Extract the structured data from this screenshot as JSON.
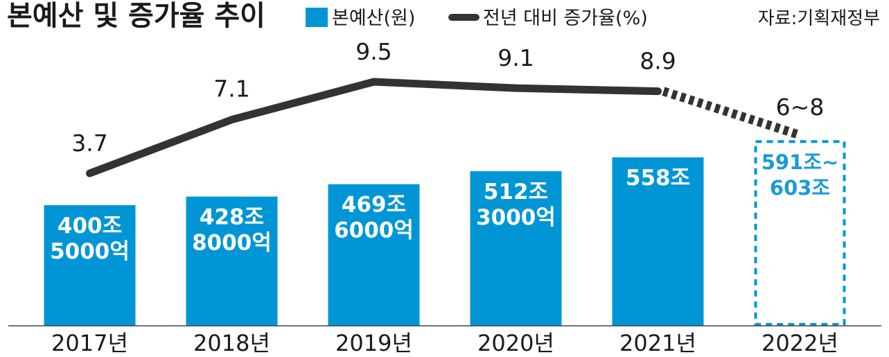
{
  "chart_data": {
    "type": "bar",
    "title": "본예산 및 증가율 추이",
    "source": "자료:기획재정부",
    "categories": [
      "2017년",
      "2018년",
      "2019년",
      "2020년",
      "2021년",
      "2022년"
    ],
    "series": [
      {
        "name": "본예산(원)",
        "kind": "bar",
        "color": "#0096d6",
        "values": [
          400.5,
          428.8,
          469.6,
          512.3,
          558,
          597
        ],
        "range_last": [
          591,
          603
        ],
        "labels": [
          [
            "400조",
            "5000억"
          ],
          [
            "428조",
            "8000억"
          ],
          [
            "469조",
            "6000억"
          ],
          [
            "512조",
            "3000억"
          ],
          [
            "558조"
          ],
          [
            "591조~",
            "603조"
          ]
        ],
        "projected": [
          false,
          false,
          false,
          false,
          false,
          true
        ]
      },
      {
        "name": "전년 대비 증가율(%)",
        "kind": "line",
        "color": "#333333",
        "values": [
          3.7,
          7.1,
          9.5,
          9.1,
          8.9,
          7
        ],
        "labels": [
          "3.7",
          "7.1",
          "9.5",
          "9.1",
          "8.9",
          "6~8"
        ],
        "range_last": [
          6,
          8
        ],
        "projected": [
          false,
          false,
          false,
          false,
          false,
          true
        ]
      }
    ],
    "bar_ylim": [
      0,
      600
    ],
    "line_ylim": [
      0,
      9.5
    ],
    "legend_position": "top",
    "grid": false
  }
}
